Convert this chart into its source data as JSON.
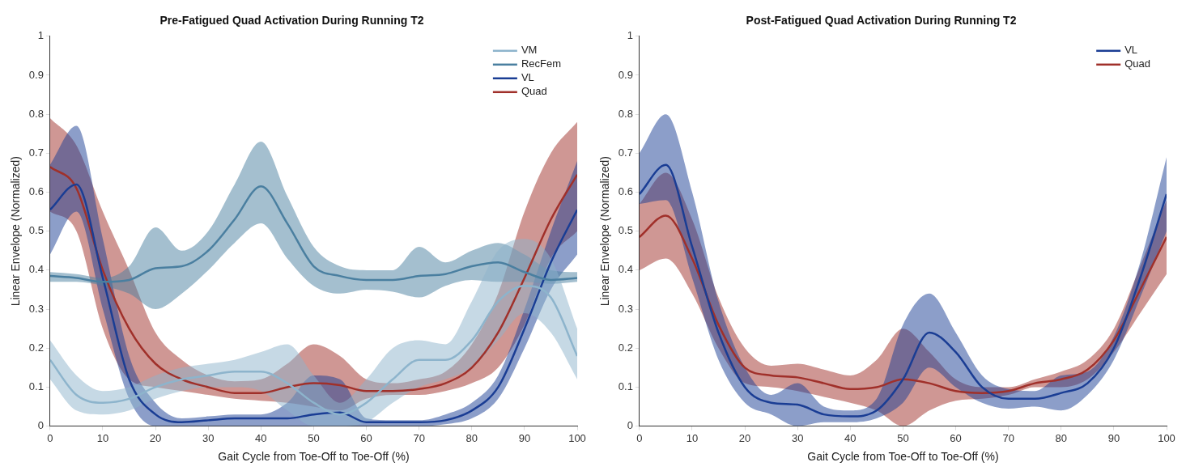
{
  "chart_data": [
    {
      "type": "line",
      "title": "Pre-Fatigued Quad Activation During Running T2",
      "xlabel": "Gait Cycle from Toe-Off to Toe-Off (%)",
      "ylabel": "Linear Envelope (Normalized)",
      "x": [
        0,
        5,
        10,
        15,
        20,
        25,
        30,
        35,
        40,
        45,
        50,
        55,
        60,
        65,
        70,
        75,
        80,
        85,
        90,
        95,
        100
      ],
      "xlim": [
        0,
        100
      ],
      "xticks": [
        0,
        10,
        20,
        30,
        40,
        50,
        60,
        70,
        80,
        90,
        100
      ],
      "ylim": [
        0,
        1
      ],
      "yticks": [
        0,
        0.1,
        0.2,
        0.3,
        0.4,
        0.5,
        0.6,
        0.7,
        0.8,
        0.9,
        1
      ],
      "grid": false,
      "legend": "top right",
      "series": [
        {
          "name": "VM",
          "color": "#8db4cc",
          "values": [
            0.17,
            0.08,
            0.06,
            0.07,
            0.1,
            0.12,
            0.13,
            0.14,
            0.14,
            0.11,
            0.06,
            0.03,
            0.06,
            0.12,
            0.17,
            0.17,
            0.22,
            0.32,
            0.36,
            0.33,
            0.18
          ],
          "lower": [
            0.12,
            0.04,
            0.03,
            0.04,
            0.07,
            0.09,
            0.1,
            0.1,
            0.09,
            0.04,
            0,
            0,
            0.01,
            0.06,
            0.1,
            0.12,
            0.15,
            0.22,
            0.29,
            0.24,
            0.12
          ],
          "upper": [
            0.22,
            0.13,
            0.09,
            0.1,
            0.13,
            0.15,
            0.16,
            0.17,
            0.19,
            0.21,
            0.13,
            0.06,
            0.12,
            0.2,
            0.22,
            0.21,
            0.32,
            0.45,
            0.48,
            0.43,
            0.25
          ]
        },
        {
          "name": "RecFem",
          "color": "#4a7fa0",
          "values": [
            0.385,
            0.38,
            0.37,
            0.375,
            0.405,
            0.41,
            0.45,
            0.53,
            0.615,
            0.52,
            0.41,
            0.385,
            0.375,
            0.375,
            0.385,
            0.39,
            0.41,
            0.42,
            0.395,
            0.375,
            0.38
          ],
          "lower": [
            0.37,
            0.37,
            0.36,
            0.34,
            0.3,
            0.34,
            0.4,
            0.47,
            0.52,
            0.43,
            0.36,
            0.34,
            0.35,
            0.345,
            0.33,
            0.36,
            0.375,
            0.37,
            0.37,
            0.365,
            0.37
          ],
          "upper": [
            0.395,
            0.39,
            0.38,
            0.41,
            0.51,
            0.45,
            0.5,
            0.62,
            0.73,
            0.59,
            0.46,
            0.41,
            0.4,
            0.4,
            0.46,
            0.42,
            0.45,
            0.47,
            0.44,
            0.4,
            0.395
          ]
        },
        {
          "name": "VL",
          "color": "#1a3d94",
          "values": [
            0.555,
            0.62,
            0.38,
            0.12,
            0.03,
            0.01,
            0.015,
            0.02,
            0.02,
            0.02,
            0.03,
            0.035,
            0.01,
            0.01,
            0.01,
            0.015,
            0.04,
            0.1,
            0.25,
            0.42,
            0.555
          ],
          "lower": [
            0.44,
            0.55,
            0.3,
            0.07,
            0,
            0,
            0,
            0,
            0,
            0,
            0,
            0,
            0,
            0,
            0,
            0.005,
            0.02,
            0.07,
            0.2,
            0.35,
            0.44
          ],
          "upper": [
            0.67,
            0.77,
            0.48,
            0.18,
            0.06,
            0.02,
            0.025,
            0.03,
            0.03,
            0.06,
            0.13,
            0.12,
            0.02,
            0.015,
            0.015,
            0.03,
            0.06,
            0.13,
            0.3,
            0.5,
            0.68
          ]
        },
        {
          "name": "Quad",
          "color": "#a0302a",
          "values": [
            0.665,
            0.61,
            0.4,
            0.25,
            0.16,
            0.12,
            0.1,
            0.085,
            0.085,
            0.1,
            0.11,
            0.105,
            0.09,
            0.09,
            0.095,
            0.11,
            0.15,
            0.24,
            0.38,
            0.53,
            0.645
          ],
          "lower": [
            0.55,
            0.5,
            0.25,
            0.12,
            0.1,
            0.09,
            0.08,
            0.07,
            0.065,
            0.06,
            0.05,
            0.04,
            0.07,
            0.08,
            0.08,
            0.09,
            0.11,
            0.15,
            0.26,
            0.43,
            0.5
          ],
          "upper": [
            0.79,
            0.72,
            0.55,
            0.4,
            0.24,
            0.17,
            0.13,
            0.115,
            0.12,
            0.16,
            0.21,
            0.18,
            0.12,
            0.11,
            0.12,
            0.14,
            0.21,
            0.34,
            0.55,
            0.7,
            0.78
          ]
        }
      ]
    },
    {
      "type": "line",
      "title": "Post-Fatigued Quad Activation During Running T2",
      "xlabel": "Gait Cycle from Toe-Off to Toe-Off (%)",
      "ylabel": "Linear Envelope (Normalized)",
      "x": [
        0,
        5,
        10,
        15,
        20,
        25,
        30,
        35,
        40,
        45,
        50,
        55,
        60,
        65,
        70,
        75,
        80,
        85,
        90,
        95,
        100
      ],
      "xlim": [
        0,
        100
      ],
      "xticks": [
        0,
        10,
        20,
        30,
        40,
        50,
        60,
        70,
        80,
        90,
        100
      ],
      "ylim": [
        0,
        1
      ],
      "yticks": [
        0,
        0.1,
        0.2,
        0.3,
        0.4,
        0.5,
        0.6,
        0.7,
        0.8,
        0.9,
        1
      ],
      "grid": false,
      "legend": "top right",
      "series": [
        {
          "name": "VL",
          "color": "#1a3d94",
          "values": [
            0.595,
            0.67,
            0.46,
            0.24,
            0.1,
            0.06,
            0.055,
            0.03,
            0.025,
            0.04,
            0.12,
            0.24,
            0.19,
            0.1,
            0.07,
            0.07,
            0.085,
            0.11,
            0.2,
            0.38,
            0.595
          ],
          "lower": [
            0.57,
            0.58,
            0.38,
            0.17,
            0.06,
            0.03,
            0,
            0.01,
            0.01,
            0.02,
            0.06,
            0.15,
            0.1,
            0.06,
            0.045,
            0.05,
            0.04,
            0.08,
            0.17,
            0.33,
            0.5
          ],
          "upper": [
            0.7,
            0.8,
            0.6,
            0.32,
            0.15,
            0.08,
            0.11,
            0.05,
            0.04,
            0.07,
            0.26,
            0.34,
            0.24,
            0.13,
            0.095,
            0.09,
            0.13,
            0.14,
            0.23,
            0.42,
            0.69
          ]
        },
        {
          "name": "Quad",
          "color": "#a0302a",
          "values": [
            0.485,
            0.54,
            0.43,
            0.26,
            0.15,
            0.13,
            0.125,
            0.11,
            0.095,
            0.1,
            0.12,
            0.11,
            0.09,
            0.085,
            0.09,
            0.11,
            0.12,
            0.145,
            0.22,
            0.35,
            0.485
          ],
          "lower": [
            0.4,
            0.43,
            0.34,
            0.2,
            0.11,
            0.1,
            0.09,
            0.075,
            0.06,
            0.04,
            0,
            0.04,
            0.065,
            0.07,
            0.08,
            0.1,
            0.1,
            0.12,
            0.19,
            0.29,
            0.39
          ],
          "upper": [
            0.57,
            0.65,
            0.53,
            0.33,
            0.2,
            0.155,
            0.16,
            0.145,
            0.13,
            0.17,
            0.25,
            0.19,
            0.12,
            0.1,
            0.1,
            0.12,
            0.14,
            0.17,
            0.25,
            0.41,
            0.58
          ]
        }
      ]
    }
  ]
}
